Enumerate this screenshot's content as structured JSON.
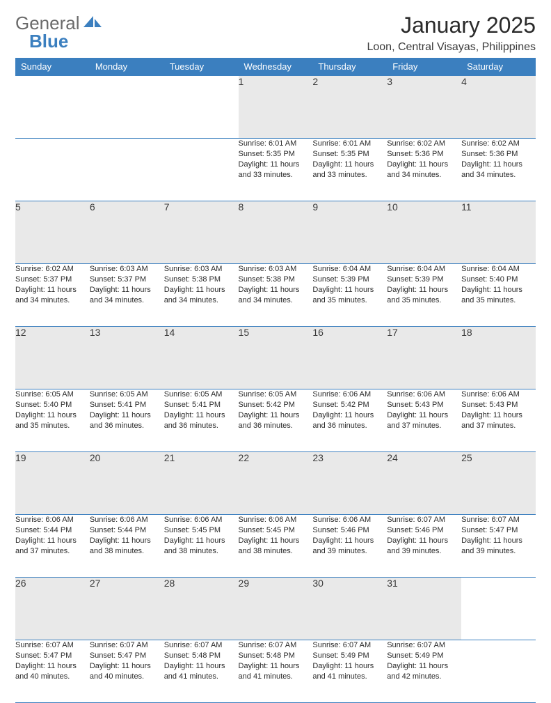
{
  "brand": {
    "text1": "General",
    "text2": "Blue",
    "logo_fill": "#3b7fbf",
    "text1_color": "#6a6a6a"
  },
  "header": {
    "title": "January 2025",
    "location": "Loon, Central Visayas, Philippines"
  },
  "style": {
    "header_bg": "#3b7fbf",
    "header_fg": "#ffffff",
    "daynum_bg": "#e9e9e9",
    "border_color": "#3b7fbf",
    "body_font_size": 11,
    "daynum_font_size": 14,
    "title_font_size": 32,
    "location_font_size": 16
  },
  "weekdays": [
    "Sunday",
    "Monday",
    "Tuesday",
    "Wednesday",
    "Thursday",
    "Friday",
    "Saturday"
  ],
  "weeks": [
    [
      null,
      null,
      null,
      {
        "n": "1",
        "sr": "6:01 AM",
        "ss": "5:35 PM",
        "dl": "11 hours and 33 minutes."
      },
      {
        "n": "2",
        "sr": "6:01 AM",
        "ss": "5:35 PM",
        "dl": "11 hours and 33 minutes."
      },
      {
        "n": "3",
        "sr": "6:02 AM",
        "ss": "5:36 PM",
        "dl": "11 hours and 34 minutes."
      },
      {
        "n": "4",
        "sr": "6:02 AM",
        "ss": "5:36 PM",
        "dl": "11 hours and 34 minutes."
      }
    ],
    [
      {
        "n": "5",
        "sr": "6:02 AM",
        "ss": "5:37 PM",
        "dl": "11 hours and 34 minutes."
      },
      {
        "n": "6",
        "sr": "6:03 AM",
        "ss": "5:37 PM",
        "dl": "11 hours and 34 minutes."
      },
      {
        "n": "7",
        "sr": "6:03 AM",
        "ss": "5:38 PM",
        "dl": "11 hours and 34 minutes."
      },
      {
        "n": "8",
        "sr": "6:03 AM",
        "ss": "5:38 PM",
        "dl": "11 hours and 34 minutes."
      },
      {
        "n": "9",
        "sr": "6:04 AM",
        "ss": "5:39 PM",
        "dl": "11 hours and 35 minutes."
      },
      {
        "n": "10",
        "sr": "6:04 AM",
        "ss": "5:39 PM",
        "dl": "11 hours and 35 minutes."
      },
      {
        "n": "11",
        "sr": "6:04 AM",
        "ss": "5:40 PM",
        "dl": "11 hours and 35 minutes."
      }
    ],
    [
      {
        "n": "12",
        "sr": "6:05 AM",
        "ss": "5:40 PM",
        "dl": "11 hours and 35 minutes."
      },
      {
        "n": "13",
        "sr": "6:05 AM",
        "ss": "5:41 PM",
        "dl": "11 hours and 36 minutes."
      },
      {
        "n": "14",
        "sr": "6:05 AM",
        "ss": "5:41 PM",
        "dl": "11 hours and 36 minutes."
      },
      {
        "n": "15",
        "sr": "6:05 AM",
        "ss": "5:42 PM",
        "dl": "11 hours and 36 minutes."
      },
      {
        "n": "16",
        "sr": "6:06 AM",
        "ss": "5:42 PM",
        "dl": "11 hours and 36 minutes."
      },
      {
        "n": "17",
        "sr": "6:06 AM",
        "ss": "5:43 PM",
        "dl": "11 hours and 37 minutes."
      },
      {
        "n": "18",
        "sr": "6:06 AM",
        "ss": "5:43 PM",
        "dl": "11 hours and 37 minutes."
      }
    ],
    [
      {
        "n": "19",
        "sr": "6:06 AM",
        "ss": "5:44 PM",
        "dl": "11 hours and 37 minutes."
      },
      {
        "n": "20",
        "sr": "6:06 AM",
        "ss": "5:44 PM",
        "dl": "11 hours and 38 minutes."
      },
      {
        "n": "21",
        "sr": "6:06 AM",
        "ss": "5:45 PM",
        "dl": "11 hours and 38 minutes."
      },
      {
        "n": "22",
        "sr": "6:06 AM",
        "ss": "5:45 PM",
        "dl": "11 hours and 38 minutes."
      },
      {
        "n": "23",
        "sr": "6:06 AM",
        "ss": "5:46 PM",
        "dl": "11 hours and 39 minutes."
      },
      {
        "n": "24",
        "sr": "6:07 AM",
        "ss": "5:46 PM",
        "dl": "11 hours and 39 minutes."
      },
      {
        "n": "25",
        "sr": "6:07 AM",
        "ss": "5:47 PM",
        "dl": "11 hours and 39 minutes."
      }
    ],
    [
      {
        "n": "26",
        "sr": "6:07 AM",
        "ss": "5:47 PM",
        "dl": "11 hours and 40 minutes."
      },
      {
        "n": "27",
        "sr": "6:07 AM",
        "ss": "5:47 PM",
        "dl": "11 hours and 40 minutes."
      },
      {
        "n": "28",
        "sr": "6:07 AM",
        "ss": "5:48 PM",
        "dl": "11 hours and 41 minutes."
      },
      {
        "n": "29",
        "sr": "6:07 AM",
        "ss": "5:48 PM",
        "dl": "11 hours and 41 minutes."
      },
      {
        "n": "30",
        "sr": "6:07 AM",
        "ss": "5:49 PM",
        "dl": "11 hours and 41 minutes."
      },
      {
        "n": "31",
        "sr": "6:07 AM",
        "ss": "5:49 PM",
        "dl": "11 hours and 42 minutes."
      },
      null
    ]
  ],
  "labels": {
    "sunrise": "Sunrise:",
    "sunset": "Sunset:",
    "daylight": "Daylight:"
  }
}
